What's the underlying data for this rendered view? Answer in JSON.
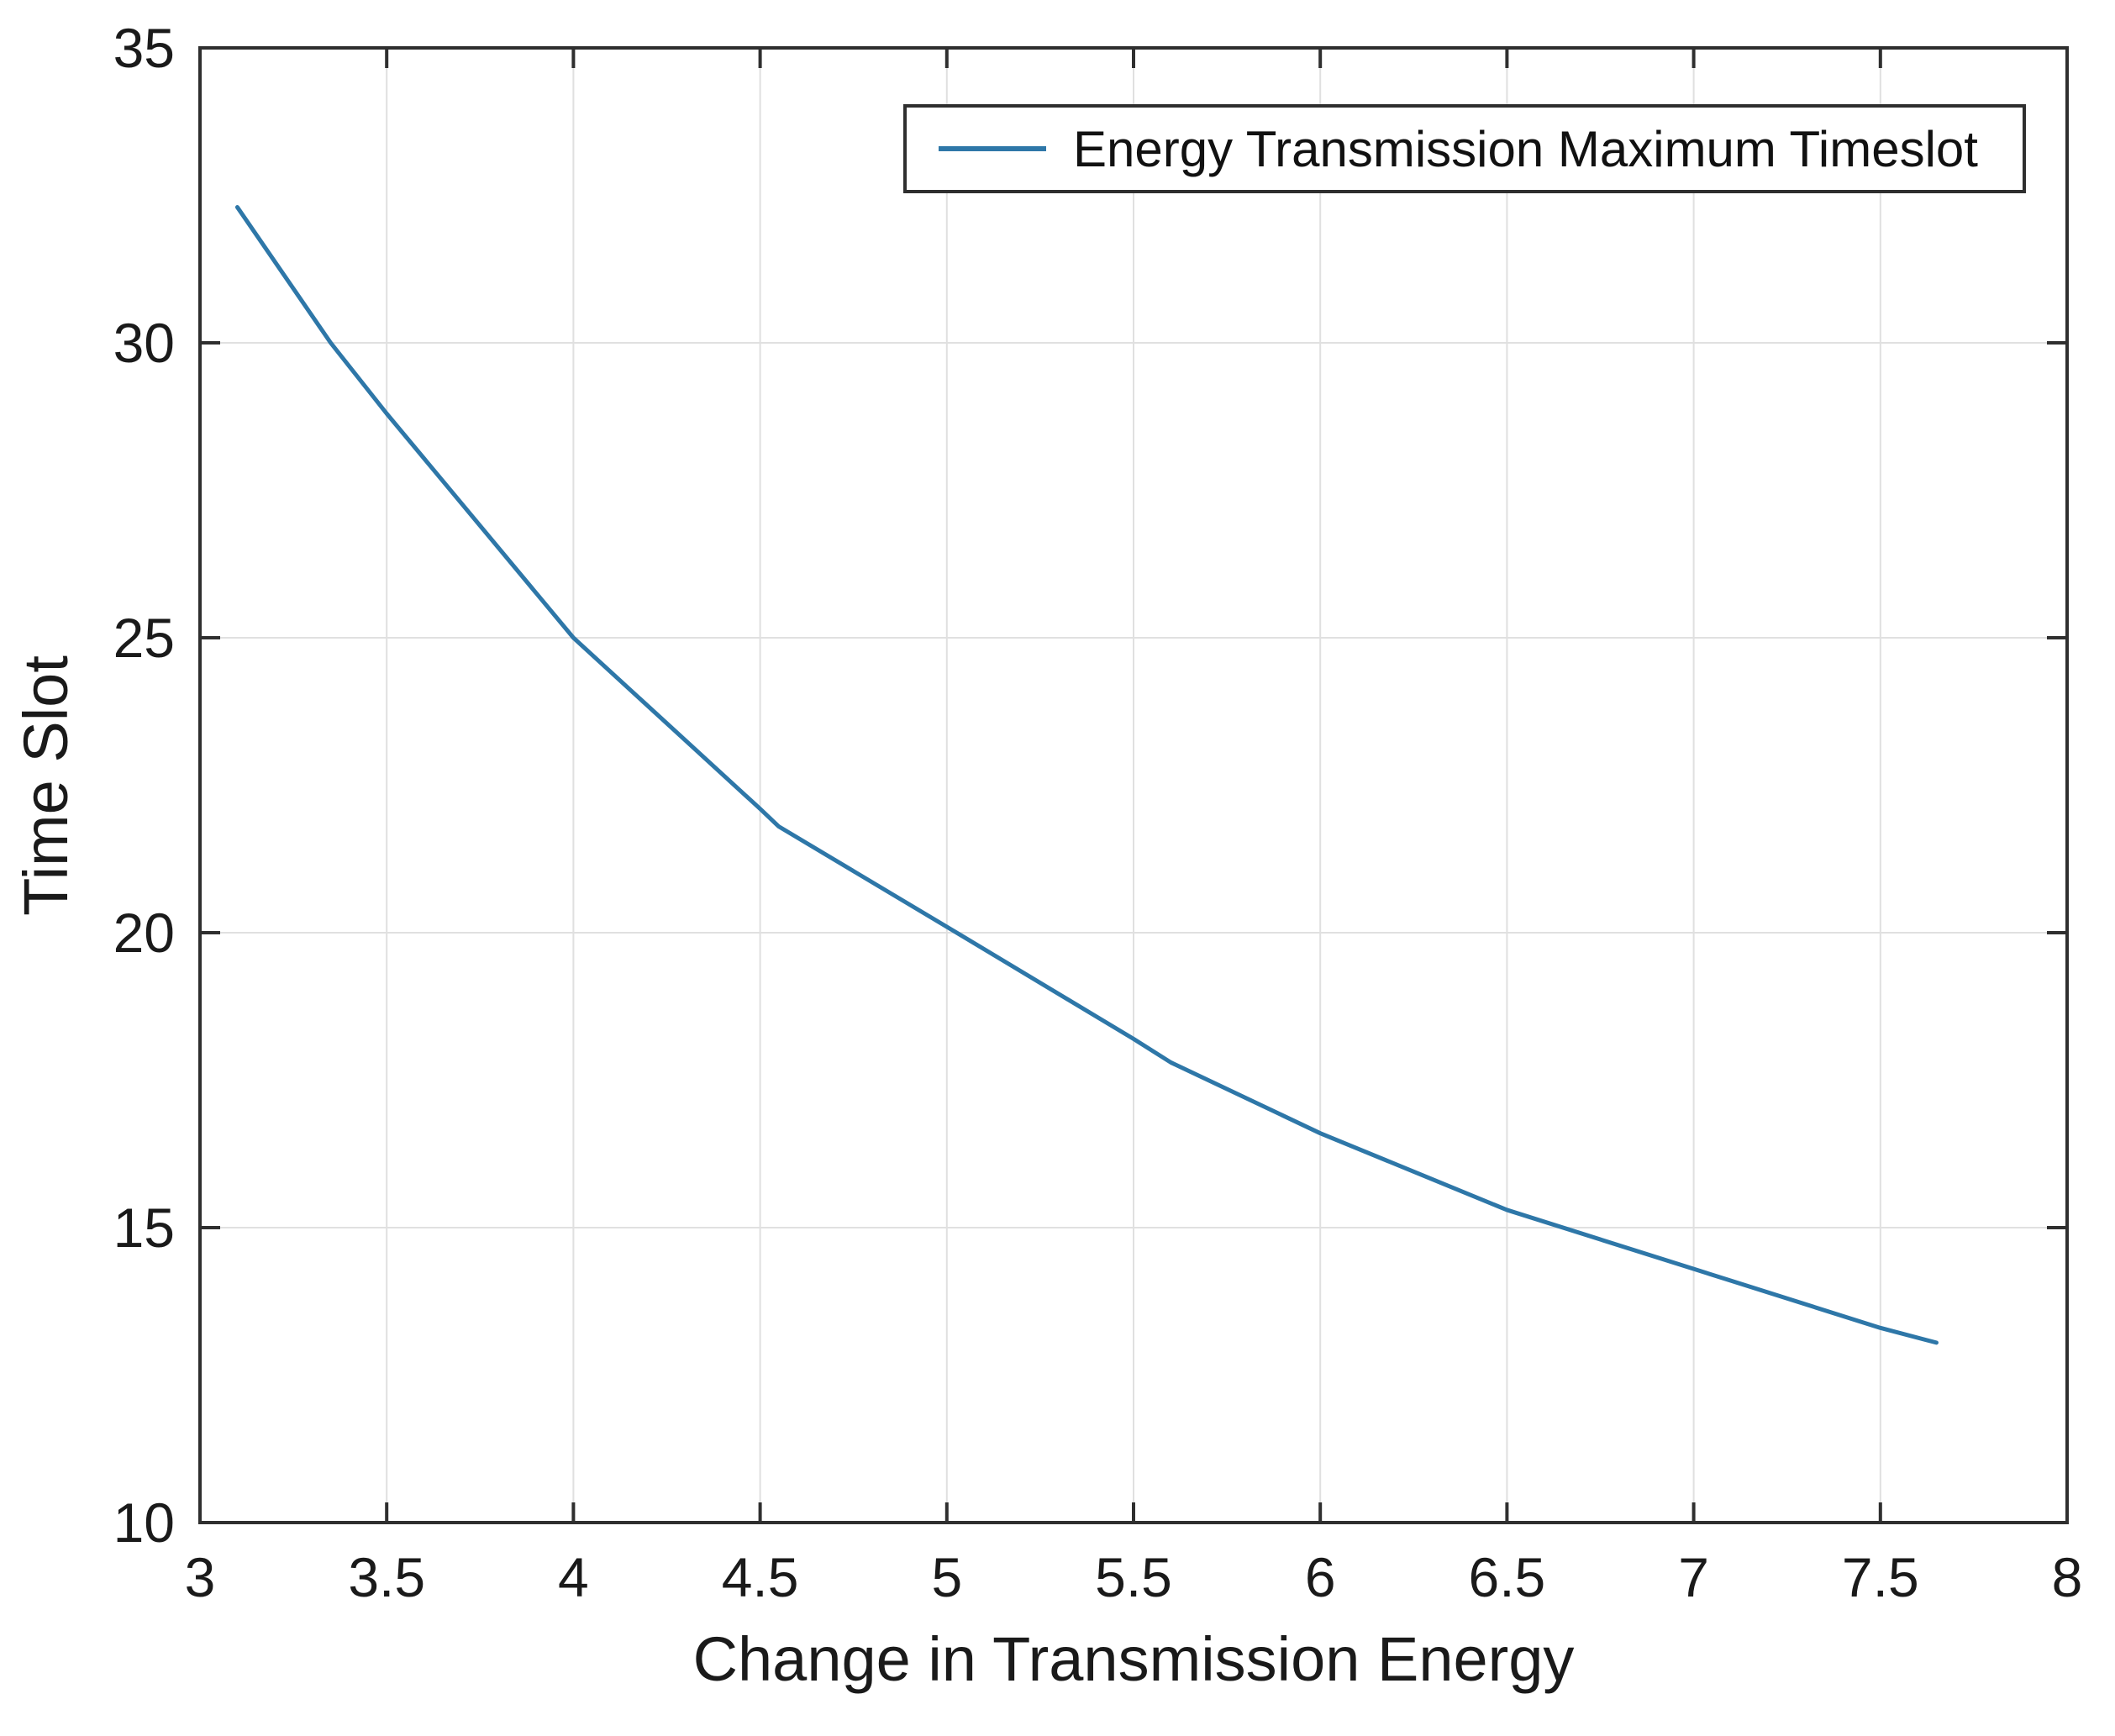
{
  "figure": {
    "background_color": "#ffffff",
    "axis_color": "#2f2f2f",
    "grid_color": "#e0e0e0",
    "text_color": "#1a1a1a"
  },
  "legend": {
    "label": "Energy Transmission Maximum Timeslot"
  },
  "chart_data": {
    "type": "line",
    "title": "",
    "xlabel": "Change in Transmission Energy",
    "ylabel": "Time Slot",
    "xlim": [
      3,
      8
    ],
    "ylim": [
      10,
      35
    ],
    "x_ticks": [
      3,
      3.5,
      4,
      4.5,
      5,
      5.5,
      6,
      6.5,
      7,
      7.5,
      8
    ],
    "x_tick_labels": [
      "3",
      "3.5",
      "4",
      "4.5",
      "5",
      "5.5",
      "6",
      "6.5",
      "7",
      "7.5",
      "8"
    ],
    "y_ticks": [
      10,
      15,
      20,
      25,
      30,
      35
    ],
    "y_tick_labels": [
      "10",
      "15",
      "20",
      "25",
      "30",
      "35"
    ],
    "grid": true,
    "legend_position": "upper right",
    "series": [
      {
        "name": "Energy Transmission Maximum Timeslot",
        "color": "#2e77a8",
        "x": [
          3.1,
          3.35,
          3.5,
          4.0,
          4.5,
          4.55,
          5.0,
          5.5,
          5.6,
          6.0,
          6.5,
          7.0,
          7.3,
          7.5,
          7.65
        ],
        "y": [
          32.3,
          30.0,
          28.8,
          25.0,
          22.1,
          21.8,
          20.1,
          18.2,
          17.8,
          16.6,
          15.3,
          14.3,
          13.7,
          13.3,
          13.05
        ]
      }
    ]
  }
}
